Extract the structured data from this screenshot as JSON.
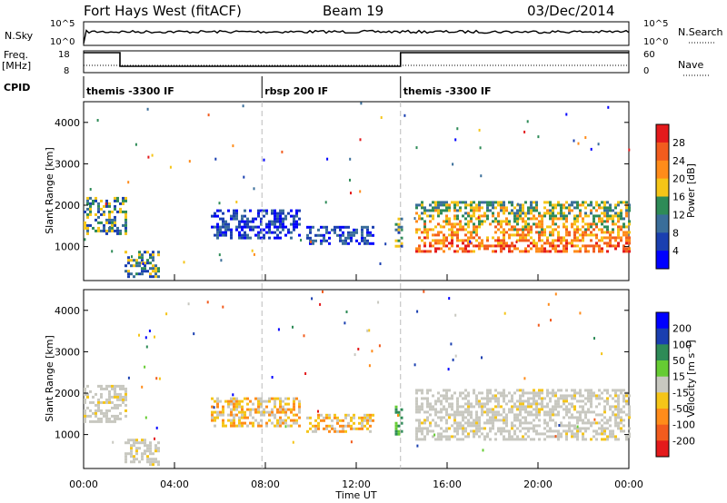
{
  "header": {
    "radar": "Fort Hays West (fitACF)",
    "beam": "Beam 19",
    "date": "03/Dec/2014"
  },
  "summary": {
    "nsky_label": "N.Sky",
    "nsky_ticks": [
      "10^5",
      "10^0"
    ],
    "nsearch_label": "N.Search",
    "nsearch_ticks": [
      "10^5",
      "10^0"
    ],
    "freq_label": "Freq.",
    "freq_unit": "[MHz]",
    "freq_ticks": [
      "18",
      "8"
    ],
    "nave_label": "Nave",
    "nave_ticks": [
      "60",
      "0"
    ],
    "cpid_label": "CPID",
    "cpid_segments": [
      {
        "label": "themis -3300 IF",
        "start_hour": 0.0,
        "end_hour": 7.85
      },
      {
        "label": "rbsp 200 IF",
        "start_hour": 7.85,
        "end_hour": 13.95
      },
      {
        "label": "themis -3300 IF",
        "start_hour": 13.95,
        "end_hour": 24.0
      }
    ],
    "freq_steps": [
      {
        "start_hour": 0.0,
        "end_hour": 1.6,
        "level": "high"
      },
      {
        "start_hour": 1.6,
        "end_hour": 13.95,
        "level": "low"
      },
      {
        "start_hour": 13.95,
        "end_hour": 24.0,
        "level": "high"
      }
    ]
  },
  "chart_data": [
    {
      "type": "heatmap",
      "name": "Power",
      "ylabel": "Slant Range [km]",
      "y_ticks": [
        "4000",
        "3000",
        "2000",
        "1000"
      ],
      "y_tick_values": [
        4000,
        3000,
        2000,
        1000
      ],
      "ylim": [
        180,
        4500
      ],
      "xlim_hours": [
        0,
        24
      ],
      "colorbar_label": "Power [dB]",
      "colorbar_ticks": [
        "28",
        "24",
        "20",
        "16",
        "12",
        "8",
        "4"
      ],
      "colorbar_colors": [
        "#e41a1c",
        "#f25c1e",
        "#ff8c1a",
        "#f5c518",
        "#2e8b57",
        "#3a6e9a",
        "#1a3fb0",
        "#0000ff"
      ],
      "echo_regions": [
        {
          "t0": 0.0,
          "t1": 1.9,
          "r0": 1300,
          "r1": 2200,
          "level": "mid"
        },
        {
          "t0": 1.8,
          "t1": 3.3,
          "r0": 280,
          "r1": 900,
          "level": "mid"
        },
        {
          "t0": 5.6,
          "t1": 9.5,
          "r0": 1200,
          "r1": 1900,
          "level": "low"
        },
        {
          "t0": 9.8,
          "t1": 12.8,
          "r0": 1100,
          "r1": 1500,
          "level": "low"
        },
        {
          "t0": 13.7,
          "t1": 14.0,
          "r0": 1000,
          "r1": 1700,
          "level": "mid"
        },
        {
          "t0": 14.6,
          "t1": 24.0,
          "r0": 900,
          "r1": 2100,
          "level": "high"
        }
      ]
    },
    {
      "type": "heatmap",
      "name": "Velocity",
      "ylabel": "Slant Range [km]",
      "y_ticks": [
        "4000",
        "3000",
        "2000",
        "1000"
      ],
      "y_tick_values": [
        4000,
        3000,
        2000,
        1000
      ],
      "ylim": [
        180,
        4500
      ],
      "xlim_hours": [
        0,
        24
      ],
      "colorbar_label": "Velocity [m s⁻¹]",
      "colorbar_ticks": [
        "200",
        "100",
        "50",
        "15",
        "-15",
        "-50",
        "-100",
        "-200"
      ],
      "colorbar_colors": [
        "#0000ff",
        "#1a3fb0",
        "#2e8b57",
        "#66cc33",
        "#c8c8c0",
        "#f5c518",
        "#ff8c1a",
        "#f25c1e",
        "#e41a1c"
      ],
      "echo_regions": [
        {
          "t0": 0.0,
          "t1": 1.9,
          "r0": 1300,
          "r1": 2200,
          "level": "gs"
        },
        {
          "t0": 1.8,
          "t1": 3.3,
          "r0": 280,
          "r1": 900,
          "level": "gs"
        },
        {
          "t0": 5.6,
          "t1": 9.5,
          "r0": 1200,
          "r1": 1900,
          "level": "neg"
        },
        {
          "t0": 9.8,
          "t1": 12.8,
          "r0": 1100,
          "r1": 1500,
          "level": "neg"
        },
        {
          "t0": 13.7,
          "t1": 14.0,
          "r0": 1000,
          "r1": 1700,
          "level": "pos"
        },
        {
          "t0": 14.6,
          "t1": 24.0,
          "r0": 900,
          "r1": 2100,
          "level": "gs"
        }
      ]
    }
  ],
  "xaxis": {
    "label": "Time UT",
    "ticks": [
      "00:00",
      "04:00",
      "08:00",
      "12:00",
      "16:00",
      "20:00",
      "00:00"
    ],
    "tick_hours": [
      0,
      4,
      8,
      12,
      16,
      20,
      24
    ]
  }
}
